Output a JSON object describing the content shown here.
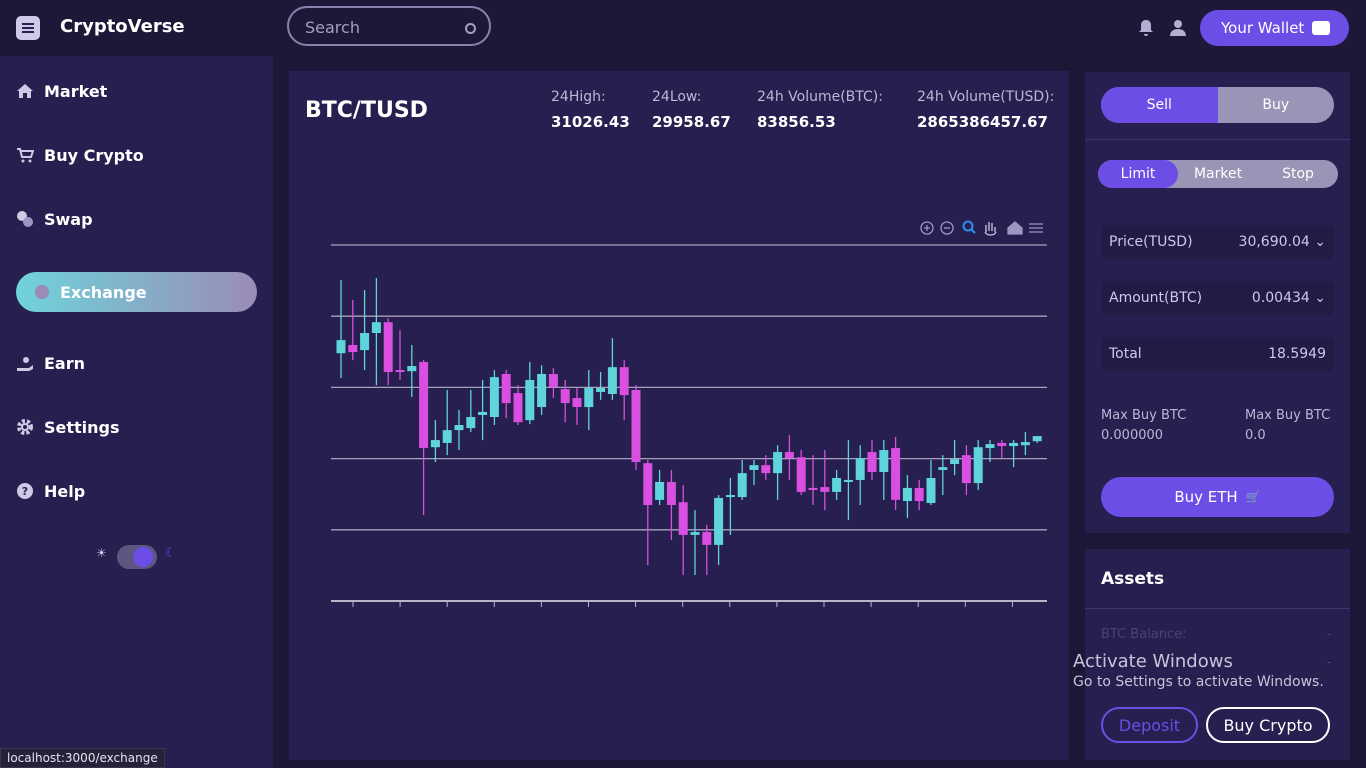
{
  "header": {
    "brand": "CryptoVerse",
    "search_placeholder": "Search",
    "wallet_button": "Your Wallet"
  },
  "sidebar": {
    "items": [
      "Market",
      "Buy Crypto",
      "Swap",
      "Exchange",
      "Earn",
      "Settings",
      "Help"
    ],
    "active": 3
  },
  "market": {
    "pair": "BTC/TUSD",
    "stats": [
      {
        "label": "24High:",
        "value": "31026.43"
      },
      {
        "label": "24Low:",
        "value": "29958.67"
      },
      {
        "label": "24h Volume(BTC):",
        "value": "83856.53"
      },
      {
        "label": "24h Volume(TUSD):",
        "value": "2865386457.67"
      }
    ]
  },
  "chart_data": {
    "type": "candlestick",
    "up_color": "#5fd4dc",
    "down_color": "#d94fe0",
    "grid": true,
    "ylim": [
      30250,
      31500
    ],
    "yticks": [
      30250,
      30500,
      30750,
      31000,
      31250,
      31500
    ],
    "open": [
      31120,
      31149,
      31131,
      31191,
      31229,
      31061,
      31057,
      31089,
      30790,
      30805,
      30850,
      30857,
      30903,
      30896,
      31047,
      30980,
      30885,
      30931,
      31047,
      30994,
      30963,
      30931,
      30984,
      30977,
      31071,
      30991,
      30734,
      30605,
      30668,
      30597,
      30482,
      30492,
      30447,
      30615,
      30615,
      30710,
      30727,
      30699,
      30773,
      30755,
      30647,
      30650,
      30633,
      30668,
      30675,
      30773,
      30703,
      30787,
      30601,
      30647,
      30594,
      30710,
      30731,
      30762,
      30664,
      30787,
      30805,
      30794,
      30797,
      30811
    ],
    "high": [
      31377,
      31307,
      31342,
      31384,
      31243,
      31201,
      31149,
      31096,
      30885,
      30991,
      30921,
      30991,
      31026,
      31061,
      31061,
      31008,
      31089,
      31078,
      31068,
      31026,
      30998,
      31061,
      31054,
      31173,
      31096,
      31008,
      30745,
      30710,
      30710,
      30657,
      30569,
      30517,
      30622,
      30682,
      30745,
      30745,
      30762,
      30797,
      30833,
      30780,
      30762,
      30780,
      30710,
      30815,
      30797,
      30815,
      30815,
      30826,
      30692,
      30675,
      30745,
      30762,
      30815,
      30797,
      30815,
      30815,
      30815,
      30815,
      30843,
      30829
    ],
    "low": [
      31033,
      31096,
      31061,
      31008,
      31008,
      31026,
      30966,
      30552,
      30738,
      30762,
      30780,
      30843,
      30815,
      30868,
      30892,
      30868,
      30871,
      30903,
      30963,
      30878,
      30868,
      30850,
      30956,
      30956,
      30885,
      30710,
      30376,
      30587,
      30464,
      30341,
      30341,
      30341,
      30376,
      30482,
      30605,
      30657,
      30675,
      30605,
      30675,
      30622,
      30587,
      30569,
      30605,
      30534,
      30587,
      30675,
      30605,
      30569,
      30541,
      30569,
      30587,
      30622,
      30692,
      30622,
      30640,
      30738,
      30752,
      30720,
      30762,
      30805
    ],
    "close": [
      31166,
      31124,
      31191,
      31229,
      31054,
      31054,
      31075,
      30787,
      30815,
      30850,
      30868,
      30896,
      30914,
      31036,
      30945,
      30878,
      31026,
      31047,
      31001,
      30945,
      30931,
      30998,
      30998,
      31071,
      30973,
      30738,
      30587,
      30668,
      30587,
      30482,
      30492,
      30447,
      30612,
      30622,
      30699,
      30727,
      30699,
      30773,
      30752,
      30633,
      30640,
      30633,
      30682,
      30675,
      30752,
      30703,
      30780,
      30605,
      30647,
      30601,
      30682,
      30720,
      30748,
      30664,
      30790,
      30801,
      30794,
      30805,
      30808,
      30829
    ]
  },
  "order": {
    "sides": [
      "Sell",
      "Buy"
    ],
    "types": [
      "Limit",
      "Market",
      "Stop"
    ],
    "fields": [
      {
        "label": "Price(TUSD)",
        "value": "30,690.04"
      },
      {
        "label": "Amount(BTC)",
        "value": "0.00434"
      },
      {
        "label": "Total",
        "value": "18.5949"
      }
    ],
    "max_buy": [
      {
        "label": "Max Buy BTC",
        "value": "0.000000"
      },
      {
        "label": "Max Buy BTC",
        "value": "0.0"
      }
    ],
    "submit": "Buy ETH"
  },
  "assets": {
    "title": "Assets",
    "rows": [
      {
        "label": "BTC Balance:",
        "value": "-"
      },
      {
        "label": "",
        "value": "-"
      }
    ],
    "deposit": "Deposit",
    "buy": "Buy Crypto"
  },
  "watermark": {
    "title": "Activate Windows",
    "text": "Go to Settings to activate Windows."
  },
  "status_url": "localhost:3000/exchange"
}
